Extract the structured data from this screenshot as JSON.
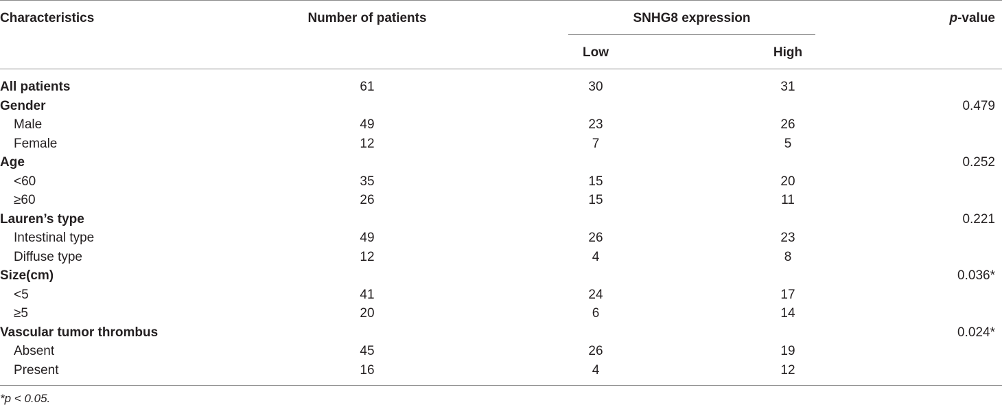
{
  "header": {
    "characteristics": "Characteristics",
    "number_of_patients": "Number of patients",
    "expression_group": "SNHG8 expression",
    "low": "Low",
    "high": "High",
    "pvalue_italic": "p",
    "pvalue_suffix": "-value"
  },
  "rows": [
    {
      "label": "All patients",
      "n": "61",
      "low": "30",
      "high": "31",
      "p": ""
    },
    {
      "label": "Gender",
      "n": "",
      "low": "",
      "high": "",
      "p": "0.479"
    },
    {
      "label": "Male",
      "n": "49",
      "low": "23",
      "high": "26",
      "p": ""
    },
    {
      "label": "Female",
      "n": "12",
      "low": "7",
      "high": "5",
      "p": ""
    },
    {
      "label": "Age",
      "n": "",
      "low": "",
      "high": "",
      "p": "0.252"
    },
    {
      "label": "<60",
      "n": "35",
      "low": "15",
      "high": "20",
      "p": ""
    },
    {
      "label": "≥60",
      "n": "26",
      "low": "15",
      "high": "11",
      "p": ""
    },
    {
      "label": "Lauren’s type",
      "n": "",
      "low": "",
      "high": "",
      "p": "0.221"
    },
    {
      "label": "Intestinal type",
      "n": "49",
      "low": "26",
      "high": "23",
      "p": ""
    },
    {
      "label": "Diffuse type",
      "n": "12",
      "low": "4",
      "high": "8",
      "p": ""
    },
    {
      "label": "Size(cm)",
      "n": "",
      "low": "",
      "high": "",
      "p": "0.036*"
    },
    {
      "label": "<5",
      "n": "41",
      "low": "24",
      "high": "17",
      "p": ""
    },
    {
      "label": "≥5",
      "n": "20",
      "low": "6",
      "high": "14",
      "p": ""
    },
    {
      "label": "Vascular tumor thrombus",
      "n": "",
      "low": "",
      "high": "",
      "p": "0.024*"
    },
    {
      "label": "Absent",
      "n": "45",
      "low": "26",
      "high": "19",
      "p": ""
    },
    {
      "label": "Present",
      "n": "16",
      "low": "4",
      "high": "12",
      "p": ""
    }
  ],
  "footnote": "*p < 0.05."
}
